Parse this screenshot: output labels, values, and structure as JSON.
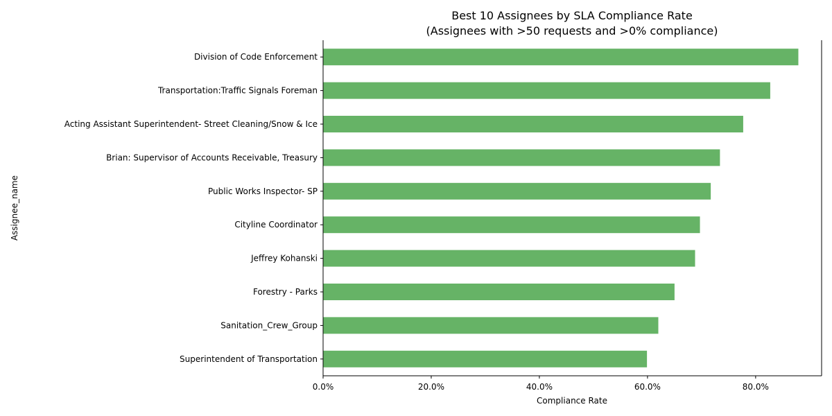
{
  "chart_data": {
    "type": "bar",
    "orientation": "horizontal",
    "title": "Best 10 Assignees by SLA Compliance Rate",
    "subtitle": "(Assignees with >50 requests and >0% compliance)",
    "xlabel": "Compliance Rate",
    "ylabel": "Assignee_name",
    "categories": [
      "Division of Code Enforcement",
      "Transportation:Traffic Signals Foreman",
      "Acting Assistant Superintendent- Street Cleaning/Snow & Ice",
      "Brian: Supervisor of Accounts Receivable, Treasury",
      "Public Works Inspector- SP",
      "Cityline Coordinator",
      "Jeffrey Kohanski",
      "Forestry - Parks",
      "Sanitation_Crew_Group",
      "Superintendent of Transportation"
    ],
    "values": [
      0.879,
      0.827,
      0.777,
      0.734,
      0.717,
      0.697,
      0.688,
      0.65,
      0.62,
      0.599
    ],
    "xlim": [
      0,
      0.922
    ],
    "xticks": [
      0,
      0.2,
      0.4,
      0.6,
      0.8
    ],
    "xtick_labels": [
      "0.0%",
      "20.0%",
      "40.0%",
      "60.0%",
      "80.0%"
    ],
    "bar_color": "#66b366",
    "grid": false,
    "legend": "none"
  }
}
